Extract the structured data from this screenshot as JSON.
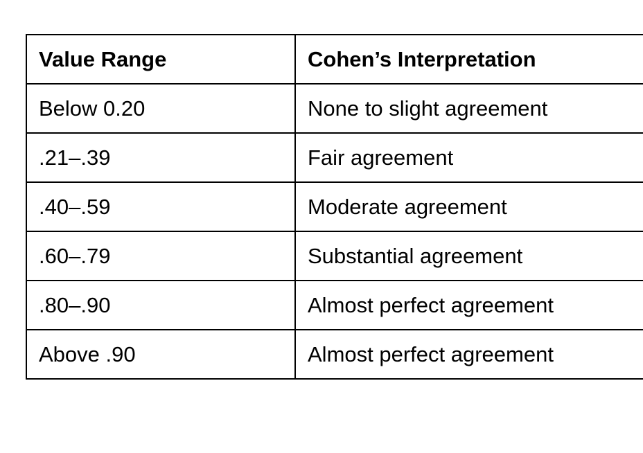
{
  "table": {
    "headers": [
      "Value Range",
      "Cohen’s Interpretation"
    ],
    "rows": [
      [
        "Below 0.20",
        "None to slight agreement"
      ],
      [
        ".21–.39",
        "Fair agreement"
      ],
      [
        ".40–.59",
        "Moderate agreement"
      ],
      [
        ".60–.79",
        "Substantial agreement"
      ],
      [
        ".80–.90",
        "Almost perfect agreement"
      ],
      [
        "Above .90",
        "Almost perfect agreement"
      ]
    ]
  }
}
